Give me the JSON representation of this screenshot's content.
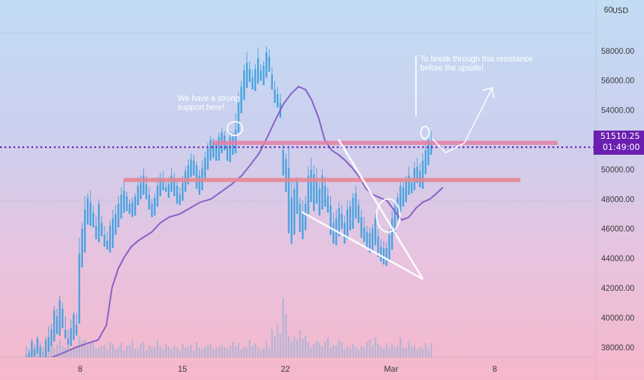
{
  "chart_data": {
    "type": "candlestick",
    "currency": "USD",
    "y_axis": {
      "ticks": [
        "38000.00",
        "40000.00",
        "42000.00",
        "44000.00",
        "46000.00",
        "48000.00",
        "50000.00",
        "52000.00",
        "54000.00",
        "56000.00",
        "58000.00"
      ],
      "range": [
        36500,
        60200
      ],
      "top_clipped_label": "60"
    },
    "x_axis": {
      "ticks": [
        "8",
        "15",
        "22",
        "Mar",
        "8"
      ]
    },
    "current_price": "51510.25",
    "countdown": "01:49:00",
    "annotations": {
      "support_note": [
        "We have a strong",
        "support here!"
      ],
      "resistance_note": [
        "To break through this resistance",
        "before the upside!"
      ]
    },
    "levels": {
      "resistance": 51800,
      "support": 49300,
      "current": 51510.25
    },
    "candles": [
      [
        36500,
        37000,
        36800,
        37500
      ],
      [
        36600,
        37600,
        37400,
        37900
      ],
      [
        37300,
        38400,
        37900,
        38600
      ],
      [
        37400,
        37900,
        37600,
        38200
      ],
      [
        37600,
        38600,
        38200,
        38800
      ],
      [
        37200,
        38000,
        37500,
        38300
      ],
      [
        37000,
        37300,
        37200,
        37700
      ],
      [
        37100,
        38500,
        38100,
        38700
      ],
      [
        37700,
        38700,
        38300,
        39400
      ],
      [
        38100,
        39200,
        38800,
        39600
      ],
      [
        38400,
        40500,
        39500,
        40800
      ],
      [
        38900,
        40100,
        39600,
        40600
      ],
      [
        38800,
        41200,
        40200,
        41500
      ],
      [
        39300,
        40600,
        40000,
        41000
      ],
      [
        38600,
        39200,
        38900,
        40100
      ],
      [
        38200,
        38600,
        38400,
        39200
      ],
      [
        38100,
        39300,
        38900,
        39900
      ],
      [
        38500,
        40200,
        39500,
        40400
      ],
      [
        38800,
        39500,
        39000,
        40300
      ],
      [
        39600,
        44300,
        43800,
        45400
      ],
      [
        43400,
        46000,
        45300,
        46400
      ],
      [
        44400,
        47300,
        46500,
        48200
      ],
      [
        46300,
        48100,
        47800,
        48400
      ],
      [
        46200,
        47800,
        47000,
        48600
      ],
      [
        46100,
        47100,
        46500,
        47600
      ],
      [
        45300,
        46200,
        45700,
        46900
      ],
      [
        45100,
        47700,
        46600,
        48000
      ],
      [
        45500,
        46400,
        46000,
        46900
      ],
      [
        44800,
        45600,
        45200,
        46200
      ],
      [
        44600,
        45200,
        44900,
        45800
      ],
      [
        44400,
        46200,
        45600,
        46600
      ],
      [
        44700,
        46700,
        46300,
        47300
      ],
      [
        45600,
        47000,
        46600,
        47600
      ],
      [
        46100,
        47700,
        47200,
        48200
      ],
      [
        46700,
        48300,
        47800,
        48800
      ],
      [
        47100,
        48600,
        48200,
        49300
      ],
      [
        47200,
        48200,
        47700,
        48500
      ],
      [
        47000,
        47700,
        47500,
        48000
      ],
      [
        46800,
        47800,
        47300,
        48100
      ],
      [
        46900,
        48200,
        47700,
        48400
      ],
      [
        47600,
        48900,
        48500,
        49500
      ],
      [
        48000,
        49100,
        48800,
        49600
      ],
      [
        48300,
        49600,
        49100,
        50100
      ],
      [
        48000,
        49000,
        48600,
        49600
      ],
      [
        47300,
        48300,
        47800,
        48800
      ],
      [
        46800,
        47700,
        47200,
        48000
      ],
      [
        46900,
        48100,
        47700,
        48400
      ],
      [
        47500,
        48900,
        48400,
        49500
      ],
      [
        48200,
        49400,
        48900,
        49800
      ],
      [
        48600,
        49300,
        49000,
        49900
      ],
      [
        48500,
        48800,
        48700,
        49200
      ],
      [
        48100,
        49000,
        48600,
        49500
      ],
      [
        48500,
        49600,
        49200,
        50100
      ],
      [
        48200,
        49400,
        48800,
        49800
      ],
      [
        47700,
        48900,
        48300,
        49300
      ],
      [
        47600,
        48300,
        48000,
        48800
      ],
      [
        47900,
        49100,
        48700,
        49600
      ],
      [
        48500,
        49900,
        49400,
        50200
      ],
      [
        49000,
        50300,
        49800,
        50700
      ],
      [
        49500,
        50700,
        50200,
        51100
      ],
      [
        49600,
        50600,
        50100,
        51000
      ],
      [
        48700,
        50300,
        49800,
        50500
      ],
      [
        48300,
        49600,
        49000,
        50000
      ],
      [
        48600,
        50100,
        49600,
        50600
      ],
      [
        49400,
        50800,
        50400,
        51200
      ],
      [
        50000,
        51400,
        51000,
        51800
      ],
      [
        50600,
        52000,
        51600,
        52300
      ],
      [
        50800,
        51800,
        51400,
        52100
      ],
      [
        50600,
        51700,
        51200,
        52000
      ],
      [
        50600,
        52200,
        51700,
        52500
      ],
      [
        51100,
        52500,
        52100,
        52800
      ],
      [
        51300,
        52300,
        51900,
        52600
      ],
      [
        50600,
        51600,
        51100,
        51900
      ],
      [
        50500,
        52200,
        51700,
        52600
      ],
      [
        51000,
        52200,
        51800,
        52500
      ],
      [
        51100,
        52700,
        52300,
        53800
      ],
      [
        52500,
        54800,
        54500,
        55200
      ],
      [
        53800,
        55600,
        55000,
        56000
      ],
      [
        54700,
        56700,
        56000,
        57100
      ],
      [
        55500,
        57200,
        56700,
        57900
      ],
      [
        55900,
        56800,
        56300,
        57300
      ],
      [
        55400,
        56200,
        55800,
        56700
      ],
      [
        55300,
        56800,
        56300,
        57100
      ],
      [
        55800,
        57500,
        57000,
        58200
      ],
      [
        56000,
        56700,
        56400,
        57100
      ],
      [
        55700,
        57000,
        56500,
        57300
      ],
      [
        56200,
        57900,
        57400,
        58300
      ],
      [
        56600,
        57600,
        57200,
        58100
      ],
      [
        55400,
        56400,
        55900,
        56900
      ],
      [
        54500,
        55400,
        55000,
        56000
      ],
      [
        54200,
        55100,
        54700,
        55600
      ],
      [
        53500,
        54500,
        54000,
        55100
      ],
      [
        49600,
        51300,
        50800,
        51700
      ],
      [
        48500,
        50700,
        50000,
        51100
      ],
      [
        45700,
        50100,
        48700,
        51600
      ],
      [
        45000,
        48100,
        46500,
        49300
      ],
      [
        45600,
        48700,
        47300,
        49300
      ],
      [
        47000,
        49200,
        48400,
        49500
      ],
      [
        45800,
        47700,
        46800,
        48100
      ],
      [
        45300,
        47100,
        46300,
        47900
      ],
      [
        45900,
        47700,
        46900,
        48200
      ],
      [
        47000,
        49600,
        48700,
        50200
      ],
      [
        47800,
        50000,
        49200,
        50800
      ],
      [
        47200,
        49700,
        48700,
        50300
      ],
      [
        47700,
        49300,
        48600,
        50100
      ],
      [
        46900,
        48700,
        47900,
        49100
      ],
      [
        47300,
        49600,
        48700,
        50000
      ],
      [
        47500,
        48900,
        48200,
        49500
      ],
      [
        47100,
        48200,
        47600,
        48800
      ],
      [
        45600,
        47600,
        46700,
        48200
      ],
      [
        45000,
        46400,
        45800,
        47100
      ],
      [
        44900,
        46700,
        45700,
        47300
      ],
      [
        45500,
        47400,
        46500,
        47800
      ],
      [
        46000,
        47000,
        46500,
        47600
      ],
      [
        45000,
        46400,
        45700,
        46900
      ],
      [
        45300,
        47300,
        46400,
        47900
      ],
      [
        45900,
        47500,
        46800,
        47900
      ],
      [
        46000,
        48100,
        47100,
        48400
      ],
      [
        46700,
        48400,
        47700,
        48900
      ],
      [
        46400,
        47600,
        46900,
        48000
      ],
      [
        45400,
        46800,
        46100,
        47300
      ],
      [
        45100,
        46100,
        45600,
        46800
      ],
      [
        44700,
        45800,
        45300,
        46200
      ],
      [
        44400,
        45700,
        45100,
        46100
      ],
      [
        44500,
        46000,
        45400,
        46300
      ],
      [
        44900,
        46700,
        45900,
        47000
      ],
      [
        44100,
        45500,
        44800,
        46000
      ],
      [
        43800,
        44800,
        44300,
        45300
      ],
      [
        43600,
        44700,
        44200,
        45200
      ],
      [
        43500,
        44700,
        44000,
        45100
      ],
      [
        43900,
        45600,
        45000,
        46000
      ],
      [
        44600,
        46700,
        46000,
        47200
      ],
      [
        45600,
        47500,
        46900,
        47900
      ],
      [
        46600,
        48100,
        47600,
        48400
      ],
      [
        47100,
        48900,
        48200,
        49400
      ],
      [
        47500,
        48800,
        48300,
        49200
      ],
      [
        47800,
        49200,
        48700,
        49600
      ],
      [
        48300,
        49600,
        49200,
        50200
      ],
      [
        48400,
        49100,
        48800,
        49500
      ],
      [
        48600,
        50100,
        49600,
        50500
      ],
      [
        49100,
        50200,
        49700,
        50800
      ],
      [
        48800,
        49900,
        49300,
        50400
      ],
      [
        48700,
        50600,
        50000,
        51100
      ],
      [
        49700,
        51300,
        50900,
        51800
      ],
      [
        50300,
        52000,
        51500,
        52400
      ],
      [
        51000,
        51800,
        51510,
        52600
      ]
    ],
    "volumes": [
      1.8,
      1.0,
      1.4,
      1.1,
      2.3,
      1.6,
      1.7,
      1.9,
      2.2,
      3.0,
      1.5,
      2.0,
      2.8,
      1.8,
      1.5,
      2.1,
      1.3,
      1.8,
      1.4,
      3.3,
      2.6,
      2.9,
      1.9,
      2.2,
      2.6,
      1.4,
      1.6,
      1.8,
      2.0,
      1.2,
      2.4,
      2.1,
      1.3,
      1.6,
      2.3,
      1.1,
      1.8,
      1.9,
      2.7,
      1.4,
      1.3,
      2.2,
      2.5,
      1.1,
      1.9,
      1.6,
      1.7,
      2.8,
      1.7,
      1.4,
      2.1,
      1.7,
      1.3,
      1.8,
      1.5,
      1.1,
      2.1,
      1.5,
      1.6,
      2.0,
      1.1,
      2.5,
      1.6,
      1.4,
      1.6,
      1.9,
      2.2,
      1.3,
      1.5,
      1.7,
      1.9,
      1.6,
      1.4,
      1.9,
      2.5,
      1.8,
      2.3,
      1.3,
      1.7,
      1.5,
      2.8,
      1.7,
      2.2,
      1.6,
      1.2,
      1.4,
      2.6,
      1.5,
      4.5,
      3.4,
      5.2,
      3.8,
      9.6,
      6.9,
      3.4,
      2.5,
      3.3,
      2.8,
      4.3,
      3.0,
      3.5,
      2.4,
      1.6,
      2.1,
      2.7,
      2.3,
      1.8,
      2.5,
      3.1,
      1.5,
      2.0,
      1.9,
      2.8,
      2.4,
      1.3,
      1.7,
      1.4,
      2.2,
      1.6,
      1.2,
      1.8,
      1.5,
      2.4,
      2.9,
      1.9,
      3.2,
      2.1,
      1.7,
      1.4,
      2.3,
      1.6,
      2.1,
      1.5,
      1.8,
      3.2,
      1.6,
      1.4,
      2.6,
      1.7,
      1.9,
      1.2,
      1.6,
      1.4,
      2.2,
      1.3,
      2.3,
      1.8,
      3.1
    ],
    "ema": [
      [
        50,
        37300
      ],
      [
        74,
        37300
      ],
      [
        90,
        37600
      ],
      [
        110,
        38000
      ],
      [
        128,
        38300
      ],
      [
        142,
        38500
      ],
      [
        154,
        39500
      ],
      [
        162,
        42000
      ],
      [
        171,
        43300
      ],
      [
        180,
        44100
      ],
      [
        190,
        44800
      ],
      [
        200,
        45200
      ],
      [
        210,
        45500
      ],
      [
        220,
        45800
      ],
      [
        232,
        46400
      ],
      [
        245,
        46800
      ],
      [
        260,
        47000
      ],
      [
        275,
        47400
      ],
      [
        290,
        47800
      ],
      [
        305,
        48000
      ],
      [
        320,
        48500
      ],
      [
        335,
        49000
      ],
      [
        350,
        49600
      ],
      [
        362,
        50300
      ],
      [
        375,
        51100
      ],
      [
        387,
        52200
      ],
      [
        398,
        53300
      ],
      [
        410,
        54400
      ],
      [
        421,
        55100
      ],
      [
        432,
        55600
      ],
      [
        442,
        55400
      ],
      [
        451,
        54700
      ],
      [
        461,
        53500
      ],
      [
        470,
        52000
      ],
      [
        480,
        51300
      ],
      [
        490,
        51000
      ],
      [
        500,
        50600
      ],
      [
        510,
        50100
      ],
      [
        520,
        49500
      ],
      [
        530,
        48700
      ],
      [
        540,
        48300
      ],
      [
        550,
        48100
      ],
      [
        560,
        47900
      ],
      [
        568,
        47400
      ],
      [
        576,
        46900
      ],
      [
        582,
        46600
      ],
      [
        592,
        46800
      ],
      [
        602,
        47400
      ],
      [
        612,
        47800
      ],
      [
        622,
        48000
      ],
      [
        632,
        48400
      ],
      [
        641,
        48800
      ]
    ]
  }
}
